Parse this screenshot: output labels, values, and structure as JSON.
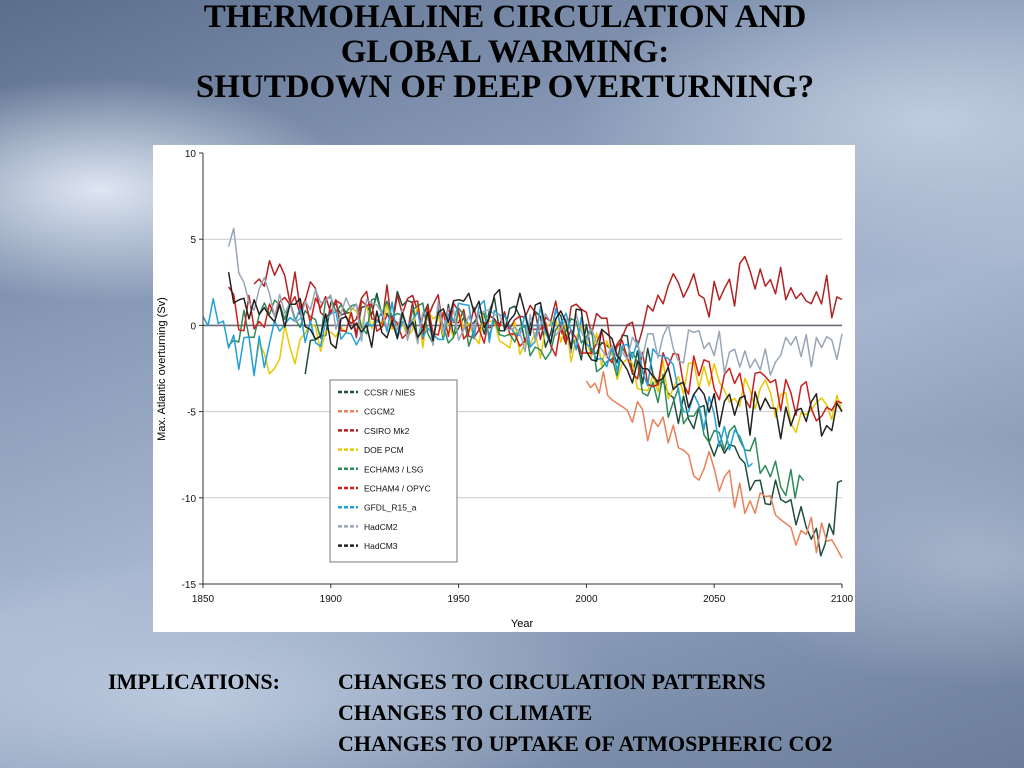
{
  "slide": {
    "title_lines": [
      "THERMOHALINE CIRCULATION AND",
      "GLOBAL WARMING:",
      "SHUTDOWN OF DEEP OVERTURNING?"
    ],
    "implications_label": "IMPLICATIONS:",
    "implications": [
      "CHANGES TO CIRCULATION PATTERNS",
      "CHANGES TO CLIMATE",
      "CHANGES TO UPTAKE OF ATMOSPHERIC CO2"
    ]
  },
  "chart_data": {
    "type": "line",
    "xlabel": "Year",
    "ylabel": "Max. Atlantic overturning (Sv)",
    "xlim": [
      1850,
      2100
    ],
    "ylim": [
      -15,
      10
    ],
    "xticks": [
      1850,
      1900,
      1950,
      2000,
      2050,
      2100
    ],
    "yticks": [
      -15,
      -10,
      -5,
      0,
      5,
      10
    ],
    "grid": "horizontal",
    "legend_position": "lower-left",
    "series": [
      {
        "name": "CCSR / NIES",
        "color": "#1f4e3a",
        "x": [
          1890,
          1900,
          1920,
          1940,
          1960,
          1980,
          2000,
          2020,
          2040,
          2060,
          2080,
          2090,
          2095,
          2100
        ],
        "y": [
          -2,
          0.5,
          1,
          0,
          0.5,
          0,
          -1,
          -2,
          -5,
          -8,
          -11,
          -12,
          -12.5,
          -9
        ]
      },
      {
        "name": "CGCM2",
        "color": "#e8825a",
        "x": [
          2000,
          2005,
          2010,
          2020,
          2030,
          2040,
          2050,
          2060,
          2070,
          2080,
          2090,
          2100
        ],
        "y": [
          -2,
          -3.5,
          -4.5,
          -5.5,
          -6.5,
          -7.5,
          -8.5,
          -9.5,
          -10.5,
          -11.5,
          -12.5,
          -13.5
        ]
      },
      {
        "name": "CSIRO Mk2",
        "color": "#b22222",
        "x": [
          1870,
          1900,
          1950,
          2000,
          2020,
          2030,
          2040,
          2050,
          2060,
          2070,
          2080,
          2090,
          2100
        ],
        "y": [
          3,
          1.5,
          0.5,
          0,
          -1,
          2.5,
          2,
          1.5,
          2.5,
          3.5,
          1.5,
          2,
          1.5
        ]
      },
      {
        "name": "DOE PCM",
        "color": "#e8c800",
        "x": [
          1870,
          1900,
          1950,
          2000,
          2010,
          2020,
          2040,
          2060,
          2070,
          2080,
          2090,
          2100
        ],
        "y": [
          -2,
          0,
          0,
          -1,
          -2,
          -3,
          -3,
          -3.5,
          -4,
          -5,
          -5.5,
          -5
        ]
      },
      {
        "name": "ECHAM3 / LSG",
        "color": "#2e8b57",
        "x": [
          1860,
          1900,
          1950,
          2000,
          2020,
          2040,
          2060,
          2070,
          2080,
          2085
        ],
        "y": [
          0,
          0.5,
          0,
          -1,
          -3,
          -5,
          -7,
          -8,
          -9,
          -9
        ]
      },
      {
        "name": "ECHAM4 / OPYC",
        "color": "#cc1f1f",
        "x": [
          1860,
          1900,
          1950,
          2000,
          2020,
          2040,
          2060,
          2080,
          2100
        ],
        "y": [
          1,
          0.5,
          0,
          -1,
          -2,
          -3,
          -3.5,
          -4,
          -4.5
        ]
      },
      {
        "name": "GFDL_R15_a",
        "color": "#22a0d8",
        "x": [
          1850,
          1860,
          1870,
          1880,
          1900,
          1950,
          2000,
          2020,
          2040,
          2060,
          2065
        ],
        "y": [
          1.5,
          -1,
          -2,
          -0.5,
          0,
          0.5,
          -0.5,
          -2,
          -4,
          -7,
          -8
        ]
      },
      {
        "name": "HadCM2",
        "color": "#98a6b8",
        "x": [
          1860,
          1870,
          1900,
          1950,
          2000,
          2030,
          2050,
          2070,
          2090,
          2100
        ],
        "y": [
          5,
          2,
          0.5,
          0,
          -0.5,
          -1,
          -1.5,
          -2,
          -1.5,
          -0.5
        ]
      },
      {
        "name": "HadCM3",
        "color": "#222222",
        "x": [
          1860,
          1880,
          1900,
          1930,
          1960,
          1980,
          2000,
          2020,
          2040,
          2060,
          2080,
          2100
        ],
        "y": [
          2,
          0.5,
          0,
          -0.5,
          1,
          0.5,
          -0.5,
          -2.5,
          -4,
          -5,
          -5.5,
          -5
        ]
      }
    ]
  }
}
